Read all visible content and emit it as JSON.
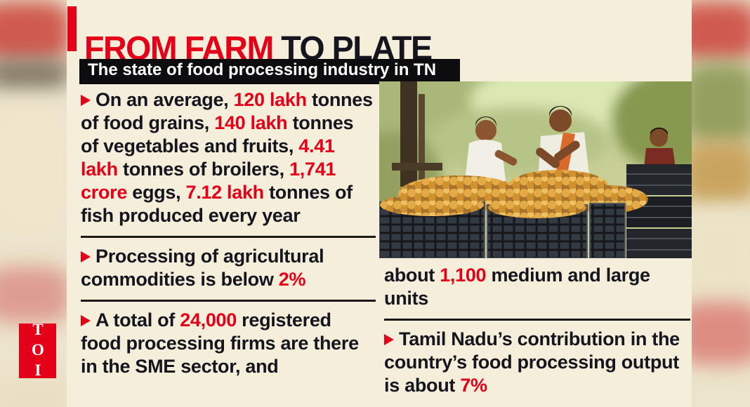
{
  "colors": {
    "accent_red": "#e30018",
    "text_dark": "#15151f",
    "cream": "#f4eeda",
    "bar_black": "#0d0d0f"
  },
  "logo": {
    "text": "TOI"
  },
  "header": {
    "title_segments": [
      {
        "text": "FROM FARM",
        "red": true
      },
      {
        "text": " TO PLATE",
        "red": false
      }
    ],
    "subtitle": "The state of food processing industry in TN"
  },
  "icons": {
    "bullet_marker": "arrow-right",
    "photo": "workers sorting fruit into crates"
  },
  "left_column": {
    "bullets": [
      {
        "segments": [
          {
            "text": "On an average, ",
            "red": false
          },
          {
            "text": "120 lakh",
            "red": true
          },
          {
            "text": " tonnes of food grains, ",
            "red": false
          },
          {
            "text": "140 lakh",
            "red": true
          },
          {
            "text": " tonnes of vegetables and fruits, ",
            "red": false
          },
          {
            "text": "4.41 lakh",
            "red": true
          },
          {
            "text": " tonnes of broilers, ",
            "red": false
          },
          {
            "text": "1,741 crore",
            "red": true
          },
          {
            "text": " eggs, ",
            "red": false
          },
          {
            "text": "7.12 lakh",
            "red": true
          },
          {
            "text": " tonnes of fish produced every year",
            "red": false
          }
        ]
      },
      {
        "segments": [
          {
            "text": "Processing of agricultural commodities is below ",
            "red": false
          },
          {
            "text": "2%",
            "red": true
          }
        ]
      },
      {
        "segments": [
          {
            "text": "A total of ",
            "red": false
          },
          {
            "text": "24,000",
            "red": true
          },
          {
            "text": " registered food processing firms are there in the SME sector, and",
            "red": false
          }
        ]
      }
    ]
  },
  "right_column": {
    "continuation": {
      "segments": [
        {
          "text": "about ",
          "red": false
        },
        {
          "text": "1,100",
          "red": true
        },
        {
          "text": " medium and large units",
          "red": false
        }
      ]
    },
    "bullet": {
      "segments": [
        {
          "text": "Tamil Nadu’s contribution in the country’s food processing output is about ",
          "red": false
        },
        {
          "text": "7%",
          "red": true
        }
      ]
    }
  }
}
